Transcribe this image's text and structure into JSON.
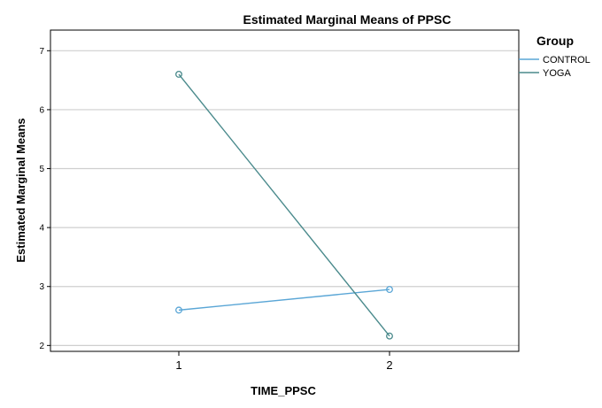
{
  "chart_data": {
    "type": "line",
    "title": "Estimated Marginal Means of PPSC",
    "xlabel": "TIME_PPSC",
    "ylabel": "Estimated Marginal Means",
    "categories": [
      "1",
      "2"
    ],
    "ylim": [
      1.9,
      7.35
    ],
    "yticks": [
      2,
      3,
      4,
      5,
      6,
      7
    ],
    "grid": true,
    "legend": {
      "title": "Group",
      "placement": "right"
    },
    "series": [
      {
        "name": "CONTROL",
        "values": [
          2.6,
          2.95
        ],
        "color": "#5aa6d6"
      },
      {
        "name": "YOGA",
        "values": [
          6.6,
          2.16
        ],
        "color": "#4a8a8c"
      }
    ]
  }
}
